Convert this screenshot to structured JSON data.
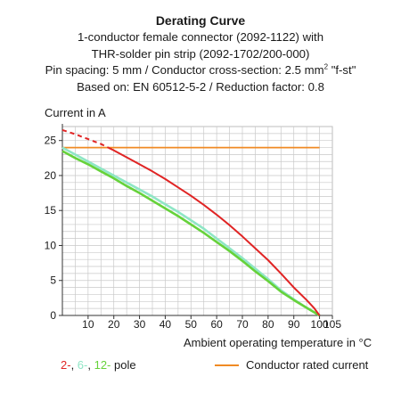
{
  "header": {
    "title": "Derating Curve",
    "line1": "1-conductor female connector (2092-1122) with",
    "line2": "THR-solder pin strip (2092-1702/200-000)",
    "line3_prefix": "Pin spacing: 5 mm / Conductor cross-section: 2.5 mm",
    "line3_sup": "2",
    "line3_suffix": " \"f-st\"",
    "line4": "Based on: EN 60512-5-2 / Reduction factor: 0.8"
  },
  "chart_data": {
    "type": "line",
    "title": "Derating Curve",
    "ylabel": "Current in A",
    "xlabel": "Ambient operating temperature in °C",
    "xlim": [
      0,
      105
    ],
    "ylim": [
      0,
      27
    ],
    "x_ticks": [
      10,
      20,
      30,
      40,
      50,
      60,
      70,
      80,
      90,
      100,
      105
    ],
    "y_ticks": [
      0,
      5,
      10,
      15,
      20,
      25
    ],
    "origin_label": "0",
    "grid": true,
    "series": [
      {
        "name": "2-pole",
        "color": "#e02424",
        "dashed_until_x": 18,
        "points": [
          [
            0,
            26.5
          ],
          [
            5,
            25.9
          ],
          [
            10,
            25.2
          ],
          [
            15,
            24.5
          ],
          [
            20,
            23.6
          ],
          [
            25,
            22.6
          ],
          [
            30,
            21.6
          ],
          [
            35,
            20.6
          ],
          [
            40,
            19.5
          ],
          [
            45,
            18.3
          ],
          [
            50,
            17.1
          ],
          [
            55,
            15.8
          ],
          [
            60,
            14.4
          ],
          [
            65,
            12.9
          ],
          [
            70,
            11.3
          ],
          [
            75,
            9.6
          ],
          [
            80,
            7.9
          ],
          [
            85,
            6.0
          ],
          [
            90,
            4.0
          ],
          [
            95,
            2.2
          ],
          [
            98,
            1.0
          ],
          [
            100,
            0
          ]
        ]
      },
      {
        "name": "6-pole",
        "color": "#8fe6c6",
        "points": [
          [
            0,
            24.0
          ],
          [
            5,
            23.0
          ],
          [
            10,
            22.0
          ],
          [
            15,
            21.0
          ],
          [
            20,
            20.0
          ],
          [
            25,
            19.0
          ],
          [
            30,
            18.0
          ],
          [
            35,
            17.0
          ],
          [
            40,
            15.9
          ],
          [
            45,
            14.8
          ],
          [
            50,
            13.6
          ],
          [
            55,
            12.4
          ],
          [
            60,
            11.0
          ],
          [
            65,
            9.6
          ],
          [
            70,
            8.2
          ],
          [
            75,
            6.7
          ],
          [
            80,
            5.2
          ],
          [
            85,
            3.6
          ],
          [
            90,
            2.3
          ],
          [
            95,
            1.1
          ],
          [
            100,
            0
          ]
        ]
      },
      {
        "name": "12-pole",
        "color": "#66d23a",
        "points": [
          [
            0,
            23.5
          ],
          [
            5,
            22.5
          ],
          [
            10,
            21.6
          ],
          [
            15,
            20.6
          ],
          [
            20,
            19.6
          ],
          [
            25,
            18.5
          ],
          [
            30,
            17.5
          ],
          [
            35,
            16.4
          ],
          [
            40,
            15.3
          ],
          [
            45,
            14.2
          ],
          [
            50,
            13.0
          ],
          [
            55,
            11.8
          ],
          [
            60,
            10.5
          ],
          [
            65,
            9.2
          ],
          [
            70,
            7.8
          ],
          [
            75,
            6.3
          ],
          [
            80,
            4.9
          ],
          [
            85,
            3.4
          ],
          [
            90,
            2.2
          ],
          [
            95,
            1.1
          ],
          [
            100,
            0
          ]
        ]
      },
      {
        "name": "Conductor rated current",
        "color": "#f08a24",
        "points": [
          [
            0,
            24
          ],
          [
            100,
            24
          ]
        ]
      }
    ],
    "legend": {
      "pole_labels": [
        {
          "text": "2-",
          "color": "#e02424"
        },
        {
          "text": ", ",
          "color": "#1a1a1a"
        },
        {
          "text": "6-",
          "color": "#8fe6c6"
        },
        {
          "text": ", ",
          "color": "#1a1a1a"
        },
        {
          "text": "12-",
          "color": "#66d23a"
        },
        {
          "text": " pole",
          "color": "#1a1a1a"
        }
      ],
      "rated_label": "Conductor rated current",
      "placement": "bottom"
    }
  }
}
